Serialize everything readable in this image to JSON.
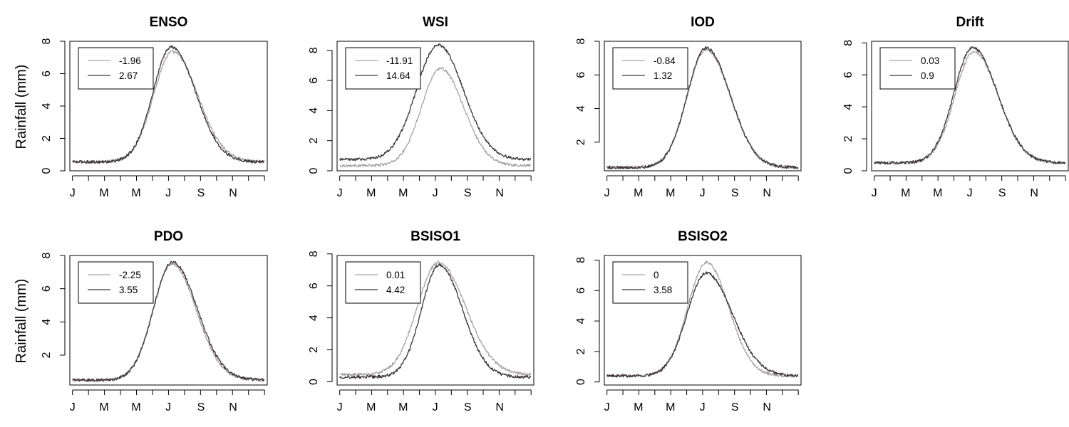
{
  "figure": {
    "ylabel_top": "Rainfall (mm)",
    "ylabel_bottom": "Rainfall (mm)"
  },
  "colors": {
    "low": "#a9a2a4",
    "high": "#3d3537",
    "axis": "#000000"
  },
  "chart_data": [
    {
      "type": "line",
      "title": "ENSO",
      "xlabel": "",
      "ylabel": "Rainfall (mm)",
      "x_tick_labels": [
        "J",
        "M",
        "M",
        "J",
        "S",
        "N"
      ],
      "ylim": [
        0,
        8.0
      ],
      "y_ticks": [
        0,
        2,
        4,
        6,
        8
      ],
      "legend_position": "top-left",
      "series": [
        {
          "name": "-1.96",
          "color": "#a9a2a4",
          "base": 0.55,
          "peak": 7.35,
          "peak_day": 190,
          "sigma_l": 36,
          "sigma_r": 48
        },
        {
          "name": "2.67",
          "color": "#3d3537",
          "base": 0.55,
          "peak": 7.65,
          "peak_day": 188,
          "sigma_l": 35,
          "sigma_r": 46
        }
      ]
    },
    {
      "type": "line",
      "title": "WSI",
      "xlabel": "",
      "ylabel": "",
      "x_tick_labels": [
        "J",
        "M",
        "M",
        "J",
        "S",
        "N"
      ],
      "ylim": [
        0,
        8.6
      ],
      "y_ticks": [
        0,
        2,
        4,
        6,
        8
      ],
      "legend_position": "top-left",
      "series": [
        {
          "name": "-11.91",
          "color": "#a9a2a4",
          "base": 0.35,
          "peak": 6.8,
          "peak_day": 192,
          "sigma_l": 36,
          "sigma_r": 44
        },
        {
          "name": "14.64",
          "color": "#3d3537",
          "base": 0.75,
          "peak": 8.35,
          "peak_day": 188,
          "sigma_l": 42,
          "sigma_r": 48
        }
      ]
    },
    {
      "type": "line",
      "title": "IOD",
      "xlabel": "",
      "ylabel": "",
      "x_tick_labels": [
        "J",
        "M",
        "M",
        "J",
        "S",
        "N"
      ],
      "ylim": [
        0.3,
        8.0
      ],
      "y_ticks": [
        2,
        4,
        6,
        8
      ],
      "legend_position": "top-left",
      "series": [
        {
          "name": "-0.84",
          "color": "#a9a2a4",
          "base": 0.5,
          "peak": 7.5,
          "peak_day": 189,
          "sigma_l": 36,
          "sigma_r": 46
        },
        {
          "name": "1.32",
          "color": "#3d3537",
          "base": 0.5,
          "peak": 7.6,
          "peak_day": 189,
          "sigma_l": 36,
          "sigma_r": 46
        }
      ]
    },
    {
      "type": "line",
      "title": "Drift",
      "xlabel": "",
      "ylabel": "",
      "x_tick_labels": [
        "J",
        "M",
        "M",
        "J",
        "S",
        "N"
      ],
      "ylim": [
        0,
        8.1
      ],
      "y_ticks": [
        0,
        2,
        4,
        6,
        8
      ],
      "legend_position": "top-left",
      "series": [
        {
          "name": "0.03",
          "color": "#a9a2a4",
          "base": 0.5,
          "peak": 7.45,
          "peak_day": 190,
          "sigma_l": 36,
          "sigma_r": 46
        },
        {
          "name": "0.9",
          "color": "#3d3537",
          "base": 0.5,
          "peak": 7.7,
          "peak_day": 188,
          "sigma_l": 36,
          "sigma_r": 47
        }
      ]
    },
    {
      "type": "line",
      "title": "PDO",
      "xlabel": "",
      "ylabel": "Rainfall (mm)",
      "x_tick_labels": [
        "J",
        "M",
        "M",
        "J",
        "S",
        "N"
      ],
      "ylim": [
        0.2,
        8.0
      ],
      "y_ticks": [
        2,
        4,
        6,
        8
      ],
      "legend_position": "top-left",
      "series": [
        {
          "name": "-2.25",
          "color": "#a9a2a4",
          "base": 0.5,
          "peak": 7.5,
          "peak_day": 189,
          "sigma_l": 36,
          "sigma_r": 46
        },
        {
          "name": "3.55",
          "color": "#3d3537",
          "base": 0.5,
          "peak": 7.6,
          "peak_day": 190,
          "sigma_l": 36,
          "sigma_r": 47
        }
      ]
    },
    {
      "type": "line",
      "title": "BSISO1",
      "xlabel": "",
      "ylabel": "",
      "x_tick_labels": [
        "J",
        "M",
        "M",
        "J",
        "S",
        "N"
      ],
      "ylim": [
        -0.2,
        7.9
      ],
      "y_ticks": [
        0,
        2,
        4,
        6,
        8
      ],
      "legend_position": "top-left",
      "series": [
        {
          "name": "0.01",
          "color": "#a9a2a4",
          "base": 0.45,
          "peak": 7.45,
          "peak_day": 188,
          "sigma_l": 40,
          "sigma_r": 52
        },
        {
          "name": "4.42",
          "color": "#3d3537",
          "base": 0.3,
          "peak": 7.3,
          "peak_day": 190,
          "sigma_l": 34,
          "sigma_r": 44
        }
      ]
    },
    {
      "type": "line",
      "title": "BSISO2",
      "xlabel": "",
      "ylabel": "",
      "x_tick_labels": [
        "J",
        "M",
        "M",
        "J",
        "S",
        "N"
      ],
      "ylim": [
        -0.2,
        8.3
      ],
      "y_ticks": [
        0,
        2,
        4,
        6,
        8
      ],
      "legend_position": "top-left",
      "series": [
        {
          "name": "0",
          "color": "#a9a2a4",
          "base": 0.4,
          "peak": 7.85,
          "peak_day": 190,
          "sigma_l": 36,
          "sigma_r": 42
        },
        {
          "name": "3.58",
          "color": "#3d3537",
          "base": 0.4,
          "peak": 7.15,
          "peak_day": 189,
          "sigma_l": 36,
          "sigma_r": 50
        }
      ]
    }
  ]
}
